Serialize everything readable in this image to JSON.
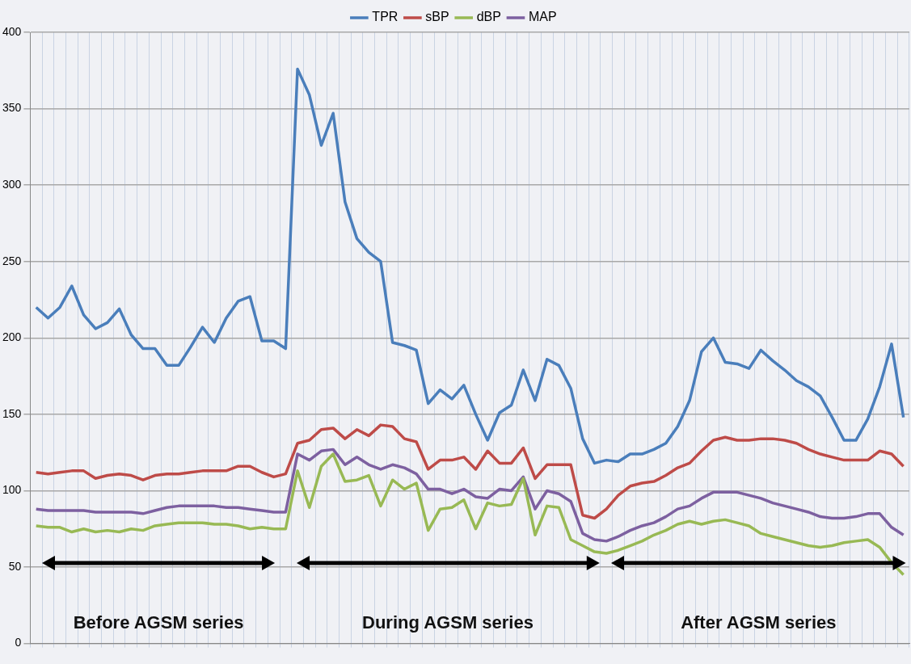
{
  "chart_data": {
    "type": "line",
    "categories": [
      null,
      null,
      null,
      null,
      null,
      null,
      null,
      null,
      null,
      null,
      null,
      null,
      null,
      null,
      null,
      null,
      null,
      null,
      null,
      null,
      null,
      null,
      null,
      null,
      null,
      null,
      null,
      null,
      null,
      null,
      null,
      null,
      null,
      null,
      null,
      null,
      null,
      null,
      null,
      null,
      null,
      null,
      null,
      null,
      null,
      null,
      null,
      null,
      null,
      null,
      null,
      null,
      null,
      null,
      null,
      null,
      null,
      null,
      null,
      null,
      null,
      null,
      null,
      null,
      null,
      null,
      null,
      null,
      null,
      null,
      null,
      null,
      null,
      null
    ],
    "ylim": [
      0,
      400
    ],
    "yticks": [
      0,
      50,
      100,
      150,
      200,
      250,
      300,
      350,
      400
    ],
    "grid": true,
    "legend": "top",
    "marker": "none",
    "annotations": [
      "Before AGSM series",
      "During AGSM series",
      "After AGSM series"
    ],
    "series": [
      {
        "name": "TPR",
        "color": "#4a7ebb",
        "values": [
          220,
          213,
          220,
          234,
          215,
          206,
          210,
          219,
          202,
          193,
          193,
          182,
          182,
          194,
          207,
          197,
          213,
          224,
          227,
          198,
          198,
          193,
          376,
          359,
          326,
          347,
          289,
          265,
          256,
          250,
          197,
          195,
          192,
          157,
          166,
          160,
          169,
          150,
          133,
          151,
          156,
          179,
          159,
          186,
          182,
          167,
          134,
          118,
          120,
          119,
          124,
          124,
          127,
          131,
          142,
          159,
          191,
          200,
          184,
          183,
          180,
          192,
          185,
          179,
          172,
          168,
          162,
          148,
          133,
          133,
          147,
          168,
          196,
          148
        ]
      },
      {
        "name": "sBP",
        "color": "#be4b48",
        "values": [
          112,
          111,
          112,
          113,
          113,
          108,
          110,
          111,
          110,
          107,
          110,
          111,
          111,
          112,
          113,
          113,
          113,
          116,
          116,
          112,
          109,
          111,
          131,
          133,
          140,
          141,
          134,
          140,
          136,
          143,
          142,
          134,
          132,
          114,
          120,
          120,
          122,
          114,
          126,
          118,
          118,
          128,
          108,
          117,
          117,
          117,
          84,
          82,
          88,
          97,
          103,
          105,
          106,
          110,
          115,
          118,
          126,
          133,
          135,
          133,
          133,
          134,
          134,
          133,
          131,
          127,
          124,
          122,
          120,
          120,
          120,
          126,
          124,
          116
        ]
      },
      {
        "name": "dBP",
        "color": "#98b954",
        "values": [
          77,
          76,
          76,
          73,
          75,
          73,
          74,
          73,
          75,
          74,
          77,
          78,
          79,
          79,
          79,
          78,
          78,
          77,
          75,
          76,
          75,
          75,
          113,
          89,
          116,
          124,
          106,
          107,
          110,
          90,
          107,
          101,
          105,
          74,
          88,
          89,
          94,
          75,
          92,
          90,
          91,
          108,
          71,
          90,
          89,
          68,
          64,
          60,
          59,
          61,
          64,
          67,
          71,
          74,
          78,
          80,
          78,
          80,
          81,
          79,
          77,
          72,
          70,
          68,
          66,
          64,
          63,
          64,
          66,
          67,
          68,
          63,
          53,
          45
        ]
      },
      {
        "name": "MAP",
        "color": "#7d60a0",
        "values": [
          88,
          87,
          87,
          87,
          87,
          86,
          86,
          86,
          86,
          85,
          87,
          89,
          90,
          90,
          90,
          90,
          89,
          89,
          88,
          87,
          86,
          86,
          124,
          120,
          126,
          127,
          117,
          122,
          117,
          114,
          117,
          115,
          111,
          101,
          101,
          98,
          101,
          96,
          95,
          101,
          100,
          109,
          88,
          100,
          98,
          93,
          72,
          68,
          67,
          70,
          74,
          77,
          79,
          83,
          88,
          90,
          95,
          99,
          99,
          99,
          97,
          95,
          92,
          90,
          88,
          86,
          83,
          82,
          82,
          83,
          85,
          85,
          76,
          71
        ]
      }
    ]
  }
}
